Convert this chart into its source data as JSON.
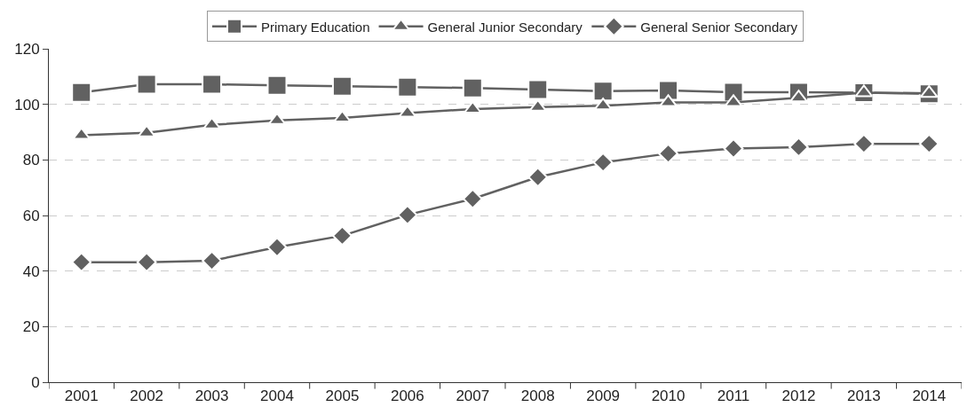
{
  "chart_data": {
    "type": "line",
    "categories": [
      "2001",
      "2002",
      "2003",
      "2004",
      "2005",
      "2006",
      "2007",
      "2008",
      "2009",
      "2010",
      "2011",
      "2012",
      "2013",
      "2014"
    ],
    "series": [
      {
        "name": "Primary Education",
        "color": "#616161",
        "marker": "square",
        "values": [
          104.3,
          107.2,
          107.2,
          106.8,
          106.5,
          106.2,
          105.9,
          105.3,
          104.8,
          105,
          104.4,
          104.4,
          104.2,
          103.8
        ]
      },
      {
        "name": "General Junior Secondary",
        "color": "#616161",
        "marker": "triangle",
        "values": [
          88.9,
          89.8,
          92.6,
          94.2,
          95.1,
          96.9,
          98.3,
          99,
          99.5,
          100.7,
          100.7,
          102.4,
          104.2,
          104
        ]
      },
      {
        "name": "General Senior Secondary",
        "color": "#616161",
        "marker": "diamond",
        "values": [
          43.2,
          43.2,
          43.7,
          48.6,
          52.7,
          60.2,
          66,
          73.8,
          79.1,
          82.3,
          84.1,
          84.6,
          85.8,
          85.8
        ]
      }
    ],
    "ylim": [
      0,
      120
    ],
    "yticks": [
      0,
      20,
      40,
      60,
      80,
      100,
      120
    ],
    "grid": "y",
    "legend": "top",
    "line_style": "solid"
  }
}
